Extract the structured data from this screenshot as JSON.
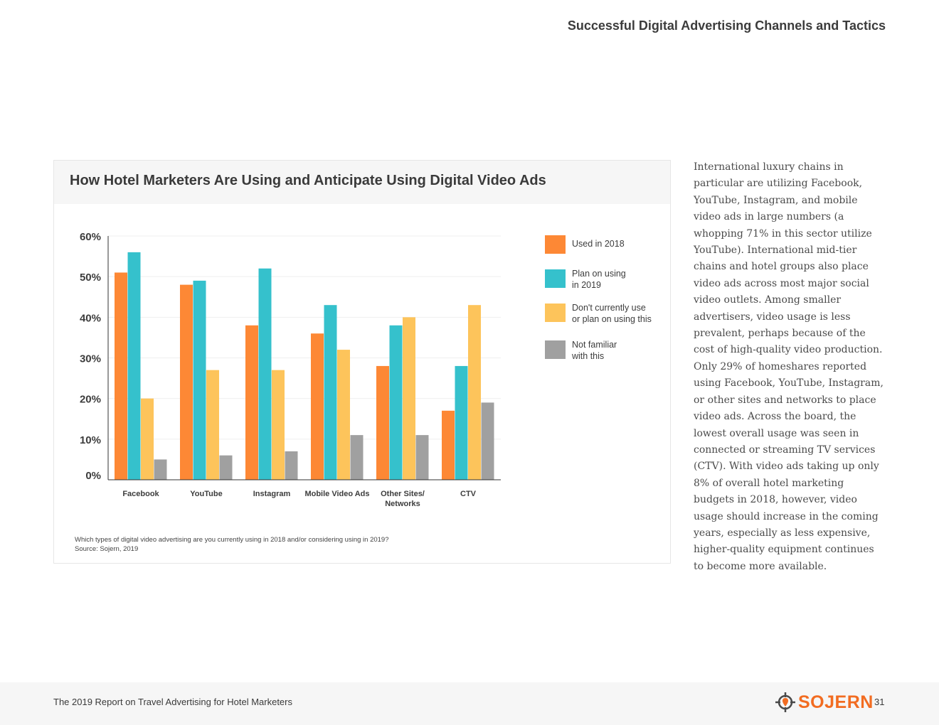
{
  "header": {
    "section_title": "Successful Digital Advertising Channels and Tactics"
  },
  "chart_card": {
    "title": "How Hotel Marketers Are Using and Anticipate Using Digital Video Ads",
    "note_question": "Which types of digital video advertising are you currently using in 2018 and/or considering using in 2019?",
    "note_source": "Source: Sojern, 2019"
  },
  "chart_data": {
    "type": "bar",
    "title": "How Hotel Marketers Are Using and Anticipate Using Digital Video Ads",
    "xlabel": "",
    "ylabel": "",
    "ylim": [
      0,
      60
    ],
    "yticks": [
      0,
      10,
      20,
      30,
      40,
      50,
      60
    ],
    "ytick_labels": [
      "0%",
      "10%",
      "20%",
      "30%",
      "40%",
      "50%",
      "60%"
    ],
    "categories": [
      "Facebook",
      "YouTube",
      "Instagram",
      "Mobile Video Ads",
      "Other Sites/\nNetworks",
      "CTV"
    ],
    "series": [
      {
        "name": "Used in 2018",
        "color": "#fd8835",
        "values": [
          51,
          48,
          38,
          36,
          28,
          17
        ]
      },
      {
        "name": "Plan on using\nin 2019",
        "color": "#35c1cc",
        "values": [
          56,
          49,
          52,
          43,
          38,
          28
        ]
      },
      {
        "name": "Don't currently use\nor plan on using this",
        "color": "#fdc45b",
        "values": [
          20,
          27,
          27,
          32,
          40,
          43
        ]
      },
      {
        "name": "Not familiar\nwith this",
        "color": "#a0a0a0",
        "values": [
          5,
          6,
          7,
          11,
          11,
          19
        ]
      }
    ],
    "legend_position": "right",
    "grid": true
  },
  "body_text": "International luxury chains in particular are utilizing Facebook, YouTube, Instagram, and mobile video ads in large numbers (a whopping 71% in this sector utilize YouTube). International mid-tier chains and hotel groups also place video ads across most major social video outlets. Among smaller advertisers, video usage is less prevalent, perhaps because of the cost of high-quality video production. Only 29% of homeshares reported using Facebook, YouTube, Instagram, or other sites and networks to place video ads. Across the board, the lowest overall usage was seen in connected or streaming TV services (CTV). With video ads taking up only 8% of overall hotel marketing budgets in 2018, however, video usage should increase in the coming years, especially as less expensive, higher-quality equipment continues to become more available.",
  "footer": {
    "report_title": "The 2019 Report on Travel Advertising for Hotel Marketers",
    "logo_text": "SOJERN",
    "logo_icon": "crosshair-pin-icon",
    "page_number": "31",
    "brand_color": "#f26c21"
  }
}
